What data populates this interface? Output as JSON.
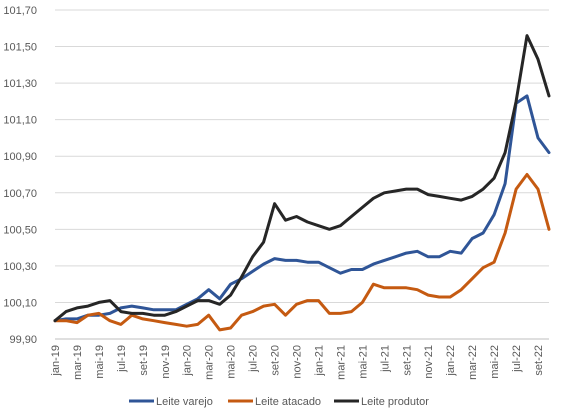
{
  "chart_data": {
    "type": "line",
    "title": "",
    "xlabel": "",
    "ylabel": "",
    "ylim": [
      99.9,
      101.7
    ],
    "yticks": [
      "99,90",
      "100,10",
      "100,30",
      "100,50",
      "100,70",
      "100,90",
      "101,10",
      "101,30",
      "101,50",
      "101,70"
    ],
    "grid": "horizontal",
    "legend_position": "bottom",
    "x": [
      "jan-19",
      "fev-19",
      "mar-19",
      "abr-19",
      "mai-19",
      "jun-19",
      "jul-19",
      "ago-19",
      "set-19",
      "out-19",
      "nov-19",
      "dez-19",
      "jan-20",
      "fev-20",
      "mar-20",
      "abr-20",
      "mai-20",
      "jun-20",
      "jul-20",
      "ago-20",
      "set-20",
      "out-20",
      "nov-20",
      "dez-20",
      "jan-21",
      "fev-21",
      "mar-21",
      "abr-21",
      "mai-21",
      "jun-21",
      "jul-21",
      "ago-21",
      "set-21",
      "out-21",
      "nov-21",
      "dez-21",
      "jan-22",
      "fev-22",
      "mar-22",
      "abr-22",
      "mai-22",
      "jun-22",
      "jul-22",
      "ago-22",
      "set-22",
      "out-22"
    ],
    "x_tick_labels": [
      "jan-19",
      "mar-19",
      "mai-19",
      "jul-19",
      "set-19",
      "nov-19",
      "jan-20",
      "mar-20",
      "mai-20",
      "jul-20",
      "set-20",
      "nov-20",
      "jan-21",
      "mar-21",
      "mai-21",
      "jul-21",
      "set-21",
      "nov-21",
      "jan-22",
      "mar-22",
      "mai-22",
      "jul-22",
      "set-22"
    ],
    "series": [
      {
        "name": "Leite varejo",
        "color": "#2F5597",
        "values": [
          100.0,
          100.01,
          100.01,
          100.03,
          100.03,
          100.04,
          100.07,
          100.08,
          100.07,
          100.06,
          100.06,
          100.06,
          100.09,
          100.12,
          100.17,
          100.12,
          100.2,
          100.23,
          100.27,
          100.31,
          100.34,
          100.33,
          100.33,
          100.32,
          100.32,
          100.29,
          100.26,
          100.28,
          100.28,
          100.31,
          100.33,
          100.35,
          100.37,
          100.38,
          100.35,
          100.35,
          100.38,
          100.37,
          100.45,
          100.48,
          100.58,
          100.75,
          101.19,
          101.23,
          101.0,
          100.92
        ]
      },
      {
        "name": "Leite atacado",
        "color": "#C55A11",
        "values": [
          100.0,
          100.0,
          99.99,
          100.03,
          100.04,
          100.0,
          99.98,
          100.03,
          100.01,
          100.0,
          99.99,
          99.98,
          99.97,
          99.98,
          100.03,
          99.95,
          99.96,
          100.03,
          100.05,
          100.08,
          100.09,
          100.03,
          100.09,
          100.11,
          100.11,
          100.04,
          100.04,
          100.05,
          100.1,
          100.2,
          100.18,
          100.18,
          100.18,
          100.17,
          100.14,
          100.13,
          100.13,
          100.17,
          100.23,
          100.29,
          100.32,
          100.48,
          100.72,
          100.8,
          100.72,
          100.5
        ]
      },
      {
        "name": "Leite produtor",
        "color": "#262626",
        "values": [
          100.0,
          100.05,
          100.07,
          100.08,
          100.1,
          100.11,
          100.05,
          100.04,
          100.04,
          100.03,
          100.03,
          100.05,
          100.08,
          100.11,
          100.11,
          100.09,
          100.14,
          100.24,
          100.35,
          100.43,
          100.64,
          100.55,
          100.57,
          100.54,
          100.52,
          100.5,
          100.52,
          100.57,
          100.62,
          100.67,
          100.7,
          100.71,
          100.72,
          100.72,
          100.69,
          100.68,
          100.67,
          100.66,
          100.68,
          100.72,
          100.78,
          100.92,
          101.2,
          101.56,
          101.43,
          101.23
        ]
      }
    ]
  }
}
